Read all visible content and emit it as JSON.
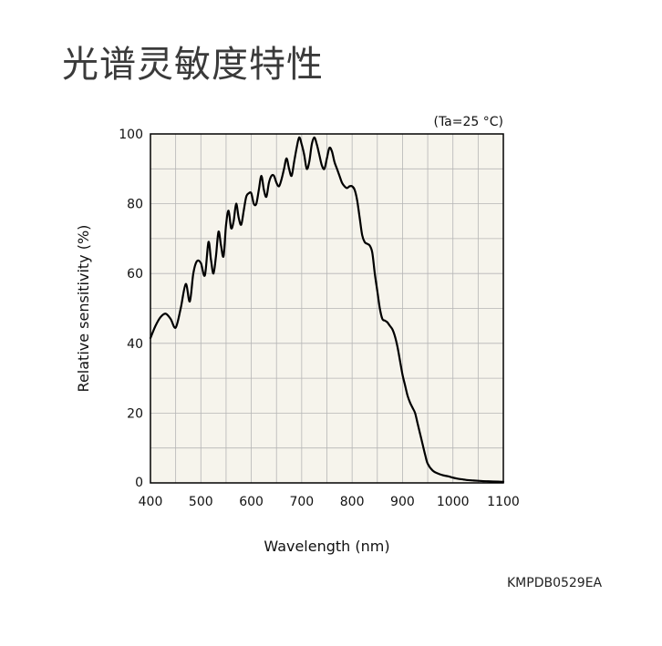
{
  "title": "光谱灵敏度特性",
  "document_code": "KMPDB0529EA",
  "chart_data": {
    "type": "line",
    "condition_label": "(Ta=25 °C)",
    "xlabel": "Wavelength (nm)",
    "ylabel": "Relative sensitivity (%)",
    "xlim": [
      400,
      1100
    ],
    "ylim": [
      0,
      100
    ],
    "xticks": [
      400,
      500,
      600,
      700,
      800,
      900,
      1000,
      1100
    ],
    "yticks": [
      0,
      20,
      40,
      60,
      80,
      100
    ],
    "grid": true,
    "grid_x_step": 50,
    "grid_y_step": 10,
    "colors": {
      "plot_bg": "#f6f4ec",
      "grid": "#b5b5b5",
      "line": "#000000"
    },
    "series": [
      {
        "x": [
          400,
          410,
          420,
          430,
          440,
          450,
          460,
          470,
          478,
          485,
          492,
          500,
          508,
          515,
          520,
          525,
          530,
          535,
          540,
          545,
          550,
          555,
          560,
          565,
          570,
          575,
          580,
          585,
          590,
          595,
          600,
          605,
          610,
          615,
          620,
          625,
          630,
          635,
          640,
          645,
          650,
          655,
          660,
          665,
          670,
          675,
          680,
          685,
          690,
          695,
          700,
          705,
          710,
          715,
          720,
          725,
          730,
          735,
          740,
          745,
          750,
          755,
          760,
          765,
          770,
          775,
          780,
          785,
          790,
          795,
          800,
          805,
          810,
          815,
          820,
          825,
          830,
          835,
          840,
          845,
          850,
          855,
          860,
          865,
          870,
          875,
          880,
          885,
          890,
          895,
          900,
          905,
          910,
          915,
          920,
          925,
          930,
          935,
          940,
          945,
          950,
          960,
          970,
          980,
          990,
          1000,
          1010,
          1020,
          1030,
          1040,
          1050,
          1060,
          1070,
          1080,
          1090,
          1100
        ],
        "y": [
          41.5,
          45,
          47.5,
          48.5,
          47,
          44.5,
          50,
          57,
          52,
          60,
          63.5,
          63,
          59.5,
          69,
          64,
          60,
          65,
          72,
          68,
          65,
          74,
          78,
          73,
          75,
          80,
          76,
          74,
          78,
          82,
          83,
          83,
          80,
          80,
          84,
          88,
          84,
          82,
          86,
          88,
          88,
          86,
          85,
          87,
          90,
          93,
          90,
          88,
          92,
          96,
          99,
          97,
          94,
          90,
          92,
          97,
          99,
          97,
          94,
          91,
          90,
          93,
          96,
          95,
          92,
          90,
          88,
          86,
          85,
          84.5,
          85,
          85,
          84,
          81,
          76,
          71,
          69,
          68.5,
          68,
          66,
          60,
          55,
          50,
          47,
          46.5,
          46,
          45,
          44,
          42,
          39,
          35,
          31,
          28,
          25,
          23,
          21.5,
          20,
          17,
          14,
          11,
          8,
          5.5,
          3.5,
          2.7,
          2.2,
          1.9,
          1.5,
          1.2,
          1.0,
          0.8,
          0.7,
          0.6,
          0.5,
          0.45,
          0.4,
          0.35,
          0.3
        ],
        "color": "#000000"
      }
    ]
  }
}
